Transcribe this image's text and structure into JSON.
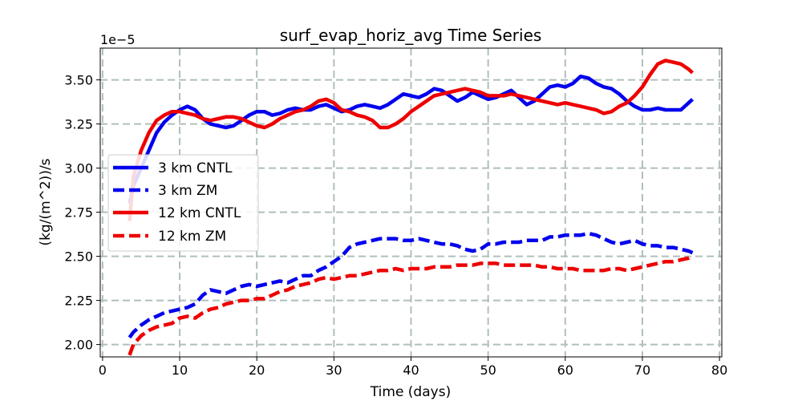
{
  "chart_data": {
    "type": "line",
    "title": "surf_evap_horiz_avg Time Series",
    "xlabel": "Time (days)",
    "ylabel": "(kg/(m^2))/s",
    "offset_label": "1e−5",
    "xlim": [
      -0.3,
      80.3
    ],
    "ylim": [
      1.93,
      3.68
    ],
    "xticks": [
      0,
      10,
      20,
      30,
      40,
      50,
      60,
      70,
      80
    ],
    "xtick_labels": [
      "0",
      "10",
      "20",
      "30",
      "40",
      "50",
      "60",
      "70",
      "80"
    ],
    "yticks": [
      2.0,
      2.25,
      2.5,
      2.75,
      3.0,
      3.25,
      3.5
    ],
    "ytick_labels": [
      "2.00",
      "2.25",
      "2.50",
      "2.75",
      "3.00",
      "3.25",
      "3.50"
    ],
    "grid": true,
    "legend_position": "center-left",
    "series": [
      {
        "name": "3 km CNTL",
        "color": "#0000ee",
        "dash": "solid",
        "x": [
          3.5,
          4,
          5,
          6,
          7,
          8,
          9,
          10,
          11,
          12,
          13,
          14,
          15,
          16,
          17,
          18,
          19,
          20,
          21,
          22,
          23,
          24,
          25,
          26,
          27,
          28,
          29,
          30,
          31,
          32,
          33,
          34,
          35,
          36,
          37,
          38,
          39,
          40,
          41,
          42,
          43,
          44,
          45,
          46,
          47,
          48,
          49,
          50,
          51,
          52,
          53,
          54,
          55,
          56,
          57,
          58,
          59,
          60,
          61,
          62,
          63,
          64,
          65,
          66,
          67,
          68,
          69,
          70,
          71,
          72,
          73,
          74,
          75,
          76,
          76.5
        ],
        "y": [
          2.8,
          2.9,
          3.0,
          3.1,
          3.2,
          3.26,
          3.3,
          3.33,
          3.35,
          3.33,
          3.28,
          3.25,
          3.24,
          3.23,
          3.24,
          3.27,
          3.3,
          3.32,
          3.32,
          3.3,
          3.31,
          3.33,
          3.34,
          3.33,
          3.33,
          3.35,
          3.36,
          3.34,
          3.32,
          3.33,
          3.35,
          3.36,
          3.35,
          3.34,
          3.36,
          3.39,
          3.42,
          3.41,
          3.4,
          3.42,
          3.45,
          3.44,
          3.41,
          3.38,
          3.4,
          3.43,
          3.41,
          3.39,
          3.4,
          3.42,
          3.44,
          3.4,
          3.36,
          3.38,
          3.42,
          3.46,
          3.47,
          3.46,
          3.48,
          3.52,
          3.51,
          3.48,
          3.46,
          3.45,
          3.42,
          3.38,
          3.35,
          3.33,
          3.33,
          3.34,
          3.33,
          3.33,
          3.33,
          3.37,
          3.39
        ]
      },
      {
        "name": "3 km ZM",
        "color": "#0000ee",
        "dash": "dashed",
        "x": [
          3.5,
          4,
          5,
          6,
          7,
          8,
          9,
          10,
          11,
          12,
          13,
          14,
          15,
          16,
          17,
          18,
          19,
          20,
          21,
          22,
          23,
          24,
          25,
          26,
          27,
          28,
          29,
          30,
          31,
          32,
          33,
          34,
          35,
          36,
          37,
          38,
          39,
          40,
          41,
          42,
          43,
          44,
          45,
          46,
          47,
          48,
          49,
          50,
          51,
          52,
          53,
          54,
          55,
          56,
          57,
          58,
          59,
          60,
          61,
          62,
          63,
          64,
          65,
          66,
          67,
          68,
          69,
          70,
          71,
          72,
          73,
          74,
          75,
          76,
          76.5
        ],
        "y": [
          2.04,
          2.07,
          2.11,
          2.14,
          2.16,
          2.18,
          2.19,
          2.2,
          2.21,
          2.23,
          2.28,
          2.31,
          2.3,
          2.29,
          2.31,
          2.33,
          2.34,
          2.33,
          2.34,
          2.35,
          2.36,
          2.35,
          2.37,
          2.39,
          2.39,
          2.42,
          2.44,
          2.47,
          2.5,
          2.55,
          2.57,
          2.58,
          2.59,
          2.6,
          2.6,
          2.6,
          2.59,
          2.59,
          2.6,
          2.59,
          2.58,
          2.57,
          2.57,
          2.56,
          2.54,
          2.53,
          2.54,
          2.57,
          2.57,
          2.58,
          2.58,
          2.58,
          2.59,
          2.59,
          2.59,
          2.61,
          2.61,
          2.62,
          2.62,
          2.62,
          2.63,
          2.62,
          2.6,
          2.58,
          2.57,
          2.58,
          2.59,
          2.57,
          2.56,
          2.56,
          2.55,
          2.55,
          2.54,
          2.53,
          2.52
        ]
      },
      {
        "name": "12 km CNTL",
        "color": "#ee0000",
        "dash": "solid",
        "x": [
          3.5,
          4,
          5,
          6,
          7,
          8,
          9,
          10,
          11,
          12,
          13,
          14,
          15,
          16,
          17,
          18,
          19,
          20,
          21,
          22,
          23,
          24,
          25,
          26,
          27,
          28,
          29,
          30,
          31,
          32,
          33,
          34,
          35,
          36,
          37,
          38,
          39,
          40,
          41,
          42,
          43,
          44,
          45,
          46,
          47,
          48,
          49,
          50,
          51,
          52,
          53,
          54,
          55,
          56,
          57,
          58,
          59,
          60,
          61,
          62,
          63,
          64,
          65,
          66,
          67,
          68,
          69,
          70,
          71,
          72,
          73,
          74,
          75,
          76,
          76.5
        ],
        "y": [
          2.7,
          2.95,
          3.1,
          3.2,
          3.27,
          3.3,
          3.32,
          3.32,
          3.31,
          3.3,
          3.28,
          3.27,
          3.28,
          3.29,
          3.29,
          3.28,
          3.26,
          3.24,
          3.23,
          3.25,
          3.28,
          3.3,
          3.32,
          3.33,
          3.35,
          3.38,
          3.39,
          3.37,
          3.33,
          3.32,
          3.3,
          3.29,
          3.27,
          3.23,
          3.23,
          3.25,
          3.28,
          3.32,
          3.35,
          3.38,
          3.41,
          3.42,
          3.43,
          3.44,
          3.45,
          3.44,
          3.43,
          3.41,
          3.41,
          3.41,
          3.42,
          3.41,
          3.4,
          3.39,
          3.38,
          3.37,
          3.36,
          3.37,
          3.36,
          3.35,
          3.34,
          3.33,
          3.31,
          3.32,
          3.35,
          3.37,
          3.41,
          3.46,
          3.53,
          3.59,
          3.61,
          3.6,
          3.59,
          3.56,
          3.54
        ]
      },
      {
        "name": "12 km ZM",
        "color": "#ee0000",
        "dash": "dashed",
        "x": [
          3.5,
          4,
          5,
          6,
          7,
          8,
          9,
          10,
          11,
          12,
          13,
          14,
          15,
          16,
          17,
          18,
          19,
          20,
          21,
          22,
          23,
          24,
          25,
          26,
          27,
          28,
          29,
          30,
          31,
          32,
          33,
          34,
          35,
          36,
          37,
          38,
          39,
          40,
          41,
          42,
          43,
          44,
          45,
          46,
          47,
          48,
          49,
          50,
          51,
          52,
          53,
          54,
          55,
          56,
          57,
          58,
          59,
          60,
          61,
          62,
          63,
          64,
          65,
          66,
          67,
          68,
          69,
          70,
          71,
          72,
          73,
          74,
          75,
          76,
          76.5
        ],
        "y": [
          1.94,
          2.0,
          2.05,
          2.08,
          2.1,
          2.11,
          2.12,
          2.15,
          2.16,
          2.15,
          2.18,
          2.2,
          2.21,
          2.23,
          2.24,
          2.25,
          2.25,
          2.26,
          2.26,
          2.28,
          2.3,
          2.31,
          2.33,
          2.34,
          2.35,
          2.37,
          2.38,
          2.37,
          2.38,
          2.39,
          2.39,
          2.4,
          2.41,
          2.42,
          2.42,
          2.43,
          2.42,
          2.43,
          2.43,
          2.43,
          2.44,
          2.44,
          2.44,
          2.45,
          2.45,
          2.45,
          2.46,
          2.46,
          2.46,
          2.45,
          2.45,
          2.45,
          2.45,
          2.45,
          2.44,
          2.44,
          2.43,
          2.43,
          2.43,
          2.42,
          2.42,
          2.42,
          2.42,
          2.43,
          2.43,
          2.42,
          2.43,
          2.44,
          2.45,
          2.46,
          2.47,
          2.47,
          2.48,
          2.49,
          2.5
        ]
      }
    ]
  }
}
